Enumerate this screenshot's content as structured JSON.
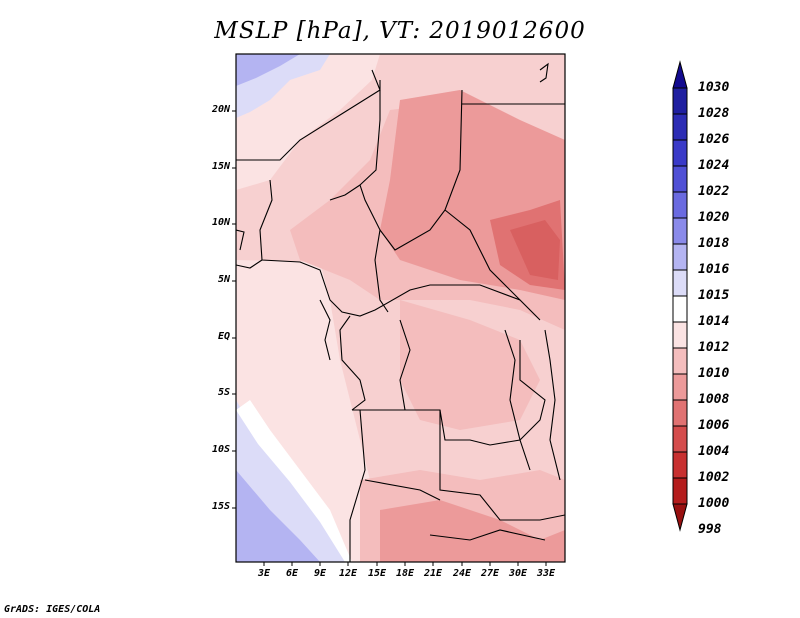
{
  "title": "MSLP [hPa], VT: 2019012600",
  "credit": "GrADS: IGES/COLA",
  "lat_labels": [
    "20N",
    "15N",
    "10N",
    "5N",
    "EQ",
    "5S",
    "10S",
    "15S"
  ],
  "lon_labels": [
    "3E",
    "6E",
    "9E",
    "12E",
    "15E",
    "18E",
    "21E",
    "24E",
    "27E",
    "30E",
    "33E"
  ],
  "colorbar": {
    "levels": [
      "1030",
      "1028",
      "1026",
      "1024",
      "1022",
      "1020",
      "1018",
      "1016",
      "1015",
      "1014",
      "1012",
      "1010",
      "1008",
      "1006",
      "1004",
      "1002",
      "1000",
      "998"
    ],
    "colors": [
      "#120a8f",
      "#1f1fa0",
      "#2c2cb4",
      "#3a3ac8",
      "#5050d6",
      "#6a6ae0",
      "#8a8aea",
      "#b4b4f2",
      "#dcdcf8",
      "#ffffff",
      "#fbe3e3",
      "#f4bdbd",
      "#ec9a9a",
      "#e07272",
      "#d44c4c",
      "#c83030",
      "#b41c1c",
      "#981010"
    ]
  }
}
